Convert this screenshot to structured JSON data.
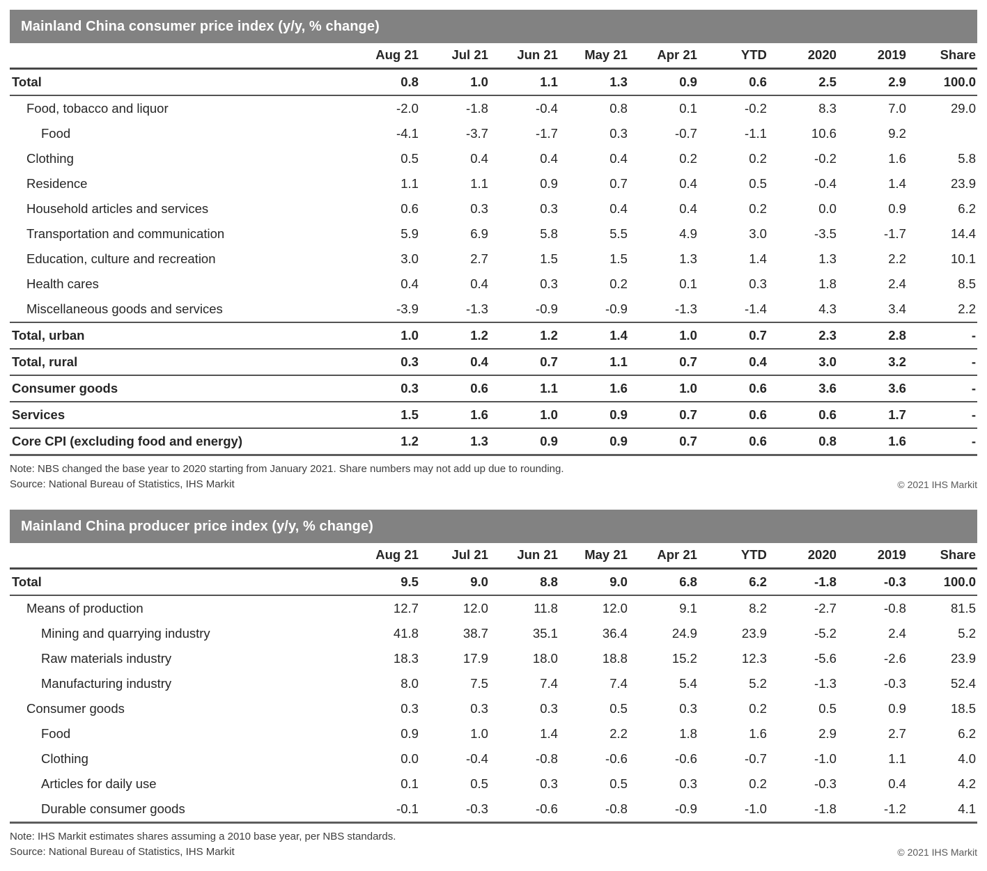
{
  "colors": {
    "title_bar_background": "#828282",
    "title_bar_text": "#ffffff",
    "body_text": "#262626",
    "section_rule": "#525252"
  },
  "tables": [
    {
      "title": "Mainland China consumer price index (y/y, % change)",
      "columns": [
        "Aug 21",
        "Jul 21",
        "Jun 21",
        "May 21",
        "Apr 21",
        "YTD",
        "2020",
        "2019",
        "Share"
      ],
      "rows": [
        {
          "label": "Total",
          "indent": 0,
          "bold": true,
          "line_below": true,
          "values": [
            "0.8",
            "1.0",
            "1.1",
            "1.3",
            "0.9",
            "0.6",
            "2.5",
            "2.9",
            "100.0"
          ]
        },
        {
          "label": "Food, tobacco and liquor",
          "indent": 1,
          "bold": false,
          "line_below": false,
          "values": [
            "-2.0",
            "-1.8",
            "-0.4",
            "0.8",
            "0.1",
            "-0.2",
            "8.3",
            "7.0",
            "29.0"
          ]
        },
        {
          "label": "Food",
          "indent": 2,
          "bold": false,
          "line_below": false,
          "values": [
            "-4.1",
            "-3.7",
            "-1.7",
            "0.3",
            "-0.7",
            "-1.1",
            "10.6",
            "9.2",
            ""
          ]
        },
        {
          "label": "Clothing",
          "indent": 1,
          "bold": false,
          "line_below": false,
          "values": [
            "0.5",
            "0.4",
            "0.4",
            "0.4",
            "0.2",
            "0.2",
            "-0.2",
            "1.6",
            "5.8"
          ]
        },
        {
          "label": "Residence",
          "indent": 1,
          "bold": false,
          "line_below": false,
          "values": [
            "1.1",
            "1.1",
            "0.9",
            "0.7",
            "0.4",
            "0.5",
            "-0.4",
            "1.4",
            "23.9"
          ]
        },
        {
          "label": "Household articles and services",
          "indent": 1,
          "bold": false,
          "line_below": false,
          "values": [
            "0.6",
            "0.3",
            "0.3",
            "0.4",
            "0.4",
            "0.2",
            "0.0",
            "0.9",
            "6.2"
          ]
        },
        {
          "label": "Transportation and communication",
          "indent": 1,
          "bold": false,
          "line_below": false,
          "values": [
            "5.9",
            "6.9",
            "5.8",
            "5.5",
            "4.9",
            "3.0",
            "-3.5",
            "-1.7",
            "14.4"
          ]
        },
        {
          "label": "Education, culture and recreation",
          "indent": 1,
          "bold": false,
          "line_below": false,
          "values": [
            "3.0",
            "2.7",
            "1.5",
            "1.5",
            "1.3",
            "1.4",
            "1.3",
            "2.2",
            "10.1"
          ]
        },
        {
          "label": "Health cares",
          "indent": 1,
          "bold": false,
          "line_below": false,
          "values": [
            "0.4",
            "0.4",
            "0.3",
            "0.2",
            "0.1",
            "0.3",
            "1.8",
            "2.4",
            "8.5"
          ]
        },
        {
          "label": "Miscellaneous goods and services",
          "indent": 1,
          "bold": false,
          "line_below": true,
          "values": [
            "-3.9",
            "-1.3",
            "-0.9",
            "-0.9",
            "-1.3",
            "-1.4",
            "4.3",
            "3.4",
            "2.2"
          ]
        },
        {
          "label": "Total, urban",
          "indent": 0,
          "bold": true,
          "line_below": true,
          "values": [
            "1.0",
            "1.2",
            "1.2",
            "1.4",
            "1.0",
            "0.7",
            "2.3",
            "2.8",
            "-"
          ]
        },
        {
          "label": "Total, rural",
          "indent": 0,
          "bold": true,
          "line_below": true,
          "values": [
            "0.3",
            "0.4",
            "0.7",
            "1.1",
            "0.7",
            "0.4",
            "3.0",
            "3.2",
            "-"
          ]
        },
        {
          "label": "Consumer goods",
          "indent": 0,
          "bold": true,
          "line_below": true,
          "values": [
            "0.3",
            "0.6",
            "1.1",
            "1.6",
            "1.0",
            "0.6",
            "3.6",
            "3.6",
            "-"
          ]
        },
        {
          "label": "Services",
          "indent": 0,
          "bold": true,
          "line_below": true,
          "values": [
            "1.5",
            "1.6",
            "1.0",
            "0.9",
            "0.7",
            "0.6",
            "0.6",
            "1.7",
            "-"
          ]
        },
        {
          "label": "Core CPI (excluding food and energy)",
          "indent": 0,
          "bold": true,
          "line_below": false,
          "final": true,
          "values": [
            "1.2",
            "1.3",
            "0.9",
            "0.9",
            "0.7",
            "0.6",
            "0.8",
            "1.6",
            "-"
          ]
        }
      ],
      "note": "Note: NBS changed the base year to 2020 starting from January 2021. Share numbers may not add up due to rounding.",
      "source": "Source: National Bureau of Statistics, IHS Markit",
      "copyright": "© 2021 IHS Markit"
    },
    {
      "title": "Mainland China producer price index (y/y, % change)",
      "columns": [
        "Aug 21",
        "Jul 21",
        "Jun 21",
        "May 21",
        "Apr 21",
        "YTD",
        "2020",
        "2019",
        "Share"
      ],
      "rows": [
        {
          "label": "Total",
          "indent": 0,
          "bold": true,
          "line_below": true,
          "values": [
            "9.5",
            "9.0",
            "8.8",
            "9.0",
            "6.8",
            "6.2",
            "-1.8",
            "-0.3",
            "100.0"
          ]
        },
        {
          "label": "Means of production",
          "indent": 1,
          "bold": false,
          "line_below": false,
          "values": [
            "12.7",
            "12.0",
            "11.8",
            "12.0",
            "9.1",
            "8.2",
            "-2.7",
            "-0.8",
            "81.5"
          ]
        },
        {
          "label": "Mining and quarrying industry",
          "indent": 2,
          "bold": false,
          "line_below": false,
          "values": [
            "41.8",
            "38.7",
            "35.1",
            "36.4",
            "24.9",
            "23.9",
            "-5.2",
            "2.4",
            "5.2"
          ]
        },
        {
          "label": "Raw materials industry",
          "indent": 2,
          "bold": false,
          "line_below": false,
          "values": [
            "18.3",
            "17.9",
            "18.0",
            "18.8",
            "15.2",
            "12.3",
            "-5.6",
            "-2.6",
            "23.9"
          ]
        },
        {
          "label": "Manufacturing industry",
          "indent": 2,
          "bold": false,
          "line_below": false,
          "values": [
            "8.0",
            "7.5",
            "7.4",
            "7.4",
            "5.4",
            "5.2",
            "-1.3",
            "-0.3",
            "52.4"
          ]
        },
        {
          "label": "Consumer goods",
          "indent": 1,
          "bold": false,
          "line_below": false,
          "values": [
            "0.3",
            "0.3",
            "0.3",
            "0.5",
            "0.3",
            "0.2",
            "0.5",
            "0.9",
            "18.5"
          ]
        },
        {
          "label": "Food",
          "indent": 2,
          "bold": false,
          "line_below": false,
          "values": [
            "0.9",
            "1.0",
            "1.4",
            "2.2",
            "1.8",
            "1.6",
            "2.9",
            "2.7",
            "6.2"
          ]
        },
        {
          "label": "Clothing",
          "indent": 2,
          "bold": false,
          "line_below": false,
          "values": [
            "0.0",
            "-0.4",
            "-0.8",
            "-0.6",
            "-0.6",
            "-0.7",
            "-1.0",
            "1.1",
            "4.0"
          ]
        },
        {
          "label": "Articles for daily use",
          "indent": 2,
          "bold": false,
          "line_below": false,
          "values": [
            "0.1",
            "0.5",
            "0.3",
            "0.5",
            "0.3",
            "0.2",
            "-0.3",
            "0.4",
            "4.2"
          ]
        },
        {
          "label": "Durable consumer goods",
          "indent": 2,
          "bold": false,
          "line_below": false,
          "final": true,
          "values": [
            "-0.1",
            "-0.3",
            "-0.6",
            "-0.8",
            "-0.9",
            "-1.0",
            "-1.8",
            "-1.2",
            "4.1"
          ]
        }
      ],
      "note": "Note: IHS Markit estimates shares assuming a 2010 base year, per NBS standards.",
      "source": "Source: National Bureau of Statistics, IHS Markit",
      "copyright": "© 2021 IHS Markit"
    }
  ]
}
